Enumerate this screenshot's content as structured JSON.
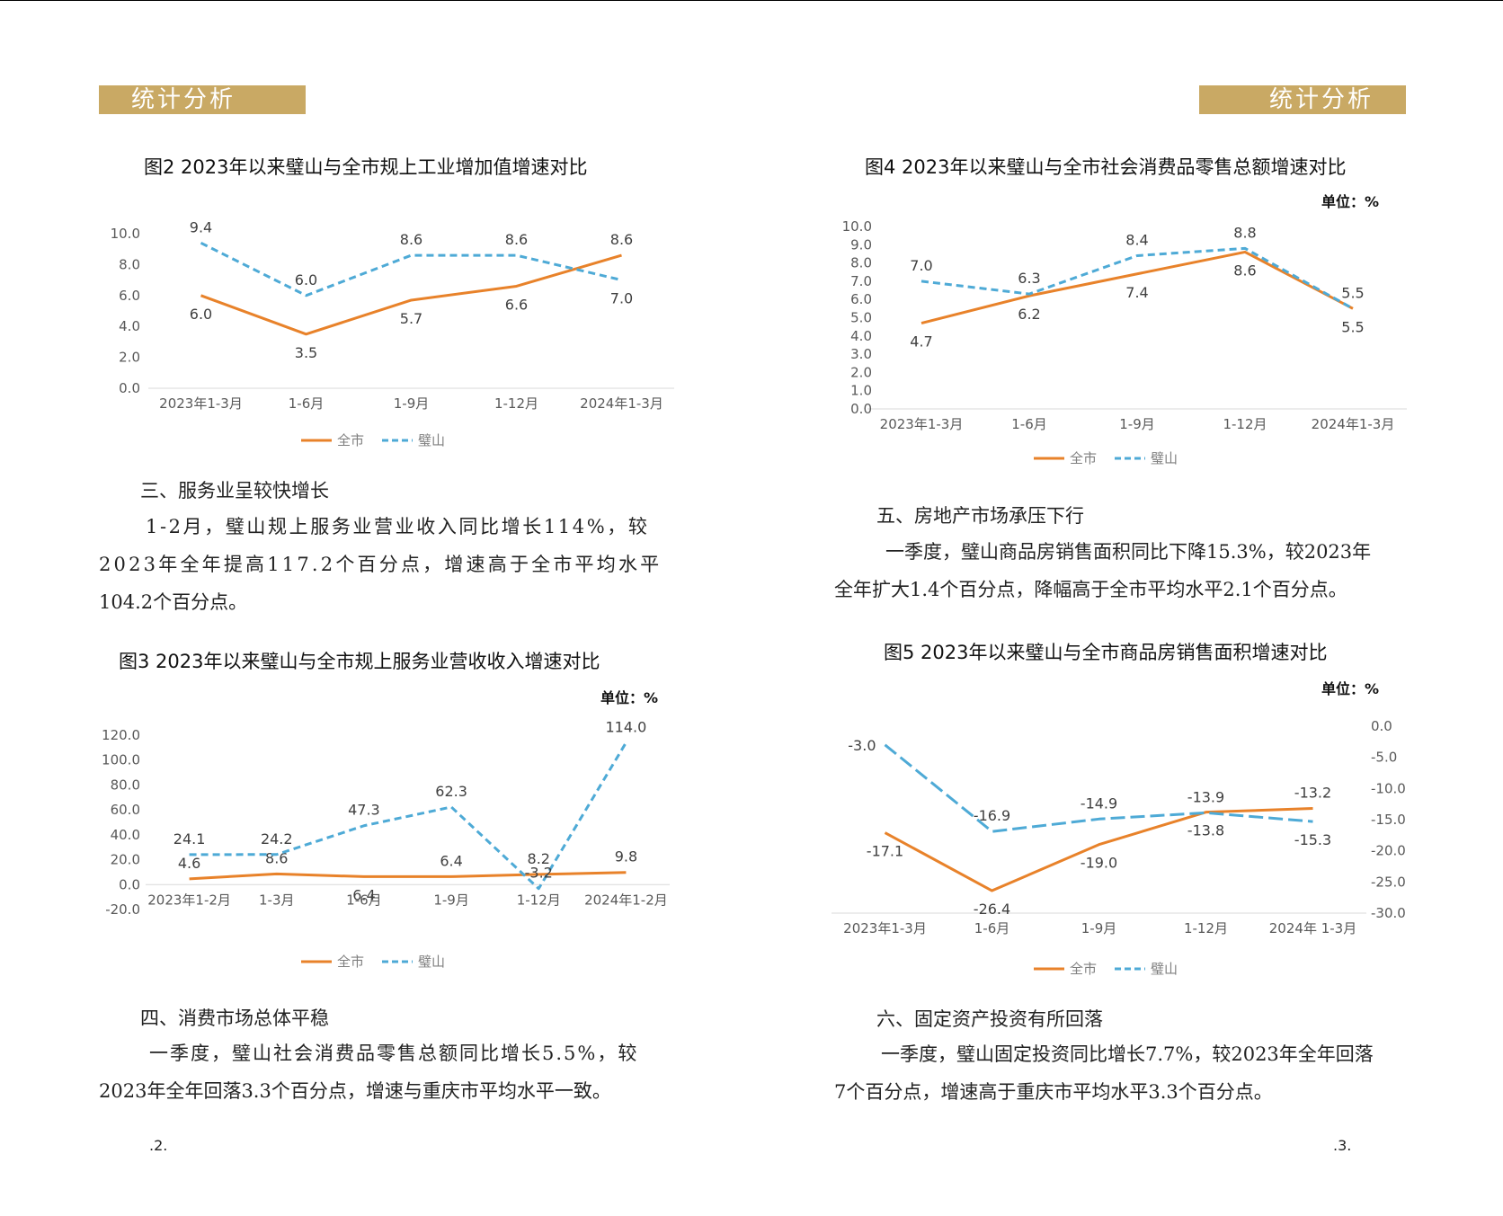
{
  "header": {
    "left_label": "统计分析",
    "right_label": "统计分析"
  },
  "colors": {
    "citywide": "#e8822a",
    "bishan": "#4eaad6",
    "header_bg": "#c9a964"
  },
  "legend": {
    "citywide": "全市",
    "bishan": "璧山"
  },
  "text": {
    "sec3_heading": "三、服务业呈较快增长",
    "sec3_line1": "1-2月，璧山规上服务业营业收入同比增长114%，较",
    "sec3_line2": "2023年全年提高117.2个百分点，增速高于全市平均水平",
    "sec3_line3": "104.2个百分点。",
    "sec4_heading": "四、消费市场总体平稳",
    "sec4_line1": "一季度，璧山社会消费品零售总额同比增长5.5%，较",
    "sec4_line2": "2023年全年回落3.3个百分点，增速与重庆市平均水平一致。",
    "sec5_heading": "五、房地产市场承压下行",
    "sec5_line1": "一季度，璧山商品房销售面积同比下降15.3%，较2023年",
    "sec5_line2": "全年扩大1.4个百分点，降幅高于全市平均水平2.1个百分点。",
    "sec6_heading": "六、固定资产投资有所回落",
    "sec6_line1": "一季度，璧山固定投资同比增长7.7%，较2023年全年回落",
    "sec6_line2": "7个百分点，增速高于重庆市平均水平3.3个百分点。"
  },
  "page_numbers": {
    "left": ".2.",
    "right": ".3."
  },
  "chart_data": [
    {
      "id": "fig2",
      "type": "line",
      "title": "图2 2023年以来璧山与全市规上工业增加值增速对比",
      "categories": [
        "2023年1-3月",
        "1-6月",
        "1-9月",
        "1-12月",
        "2024年1-3月"
      ],
      "y_ticks": [
        "10.0",
        "8.0",
        "6.0",
        "4.0",
        "2.0",
        "0.0"
      ],
      "ylim": [
        0,
        10
      ],
      "series": [
        {
          "name": "全市",
          "values": [
            6.0,
            3.5,
            5.7,
            6.6,
            8.6
          ],
          "labels": [
            "6.0",
            "3.5",
            "5.7",
            "6.6",
            "8.6"
          ]
        },
        {
          "name": "璧山",
          "values": [
            9.4,
            6.0,
            8.6,
            8.6,
            7.0
          ],
          "labels": [
            "9.4",
            "6.0",
            "8.6",
            "8.6",
            "7.0"
          ]
        }
      ]
    },
    {
      "id": "fig3",
      "type": "line",
      "title": "图3 2023年以来璧山与全市规上服务业营收收入增速对比",
      "unit": "单位：%",
      "categories": [
        "2023年1-2月",
        "1-3月",
        "1-6月",
        "1-9月",
        "1-12月",
        "2024年1-2月"
      ],
      "y_ticks": [
        "120.0",
        "100.0",
        "80.0",
        "60.0",
        "40.0",
        "20.0",
        "0.0",
        "-20.0"
      ],
      "ylim": [
        -20,
        120
      ],
      "series": [
        {
          "name": "全市",
          "values": [
            4.6,
            8.6,
            6.4,
            6.4,
            8.2,
            9.8
          ],
          "labels": [
            "4.6",
            "8.6",
            "6.4",
            "6.4",
            "8.2",
            "9.8"
          ]
        },
        {
          "name": "璧山",
          "values": [
            24.1,
            24.2,
            47.3,
            62.3,
            -3.2,
            114.0
          ],
          "labels": [
            "24.1",
            "24.2",
            "47.3",
            "62.3",
            "-3.2",
            "114.0"
          ]
        }
      ]
    },
    {
      "id": "fig4",
      "type": "line",
      "title": "图4 2023年以来璧山与全市社会消费品零售总额增速对比",
      "unit": "单位：%",
      "categories": [
        "2023年1-3月",
        "1-6月",
        "1-9月",
        "1-12月",
        "2024年1-3月"
      ],
      "y_ticks": [
        "10.0",
        "9.0",
        "8.0",
        "7.0",
        "6.0",
        "5.0",
        "4.0",
        "3.0",
        "2.0",
        "1.0",
        "0.0"
      ],
      "ylim": [
        0,
        10
      ],
      "series": [
        {
          "name": "全市",
          "values": [
            4.7,
            6.2,
            7.4,
            8.6,
            5.5
          ],
          "labels": [
            "4.7",
            "6.2",
            "7.4",
            "8.6",
            "5.5"
          ]
        },
        {
          "name": "璧山",
          "values": [
            7.0,
            6.3,
            8.4,
            8.8,
            5.5
          ],
          "labels": [
            "7.0",
            "6.3",
            "8.4",
            "8.8",
            "5.5"
          ]
        }
      ]
    },
    {
      "id": "fig5",
      "type": "line",
      "title": "图5 2023年以来璧山与全市商品房销售面积增速对比",
      "unit": "单位：%",
      "categories": [
        "2023年1-3月",
        "1-6月",
        "1-9月",
        "1-12月",
        "2024年 1-3月"
      ],
      "y_ticks": [
        "0.0",
        "-5.0",
        "-10.0",
        "-15.0",
        "-20.0",
        "-25.0",
        "-30.0"
      ],
      "ylim": [
        -30,
        0
      ],
      "series": [
        {
          "name": "全市",
          "values": [
            -17.1,
            -26.4,
            -19.0,
            -13.8,
            -13.2
          ],
          "labels": [
            "-17.1",
            "-26.4",
            "-19.0",
            "-13.8",
            "-13.2"
          ]
        },
        {
          "name": "璧山",
          "values": [
            -3.0,
            -16.9,
            -14.9,
            -13.9,
            -15.3
          ],
          "labels": [
            "-3.0",
            "-16.9",
            "-14.9",
            "-13.9",
            "-15.3"
          ]
        }
      ]
    }
  ]
}
